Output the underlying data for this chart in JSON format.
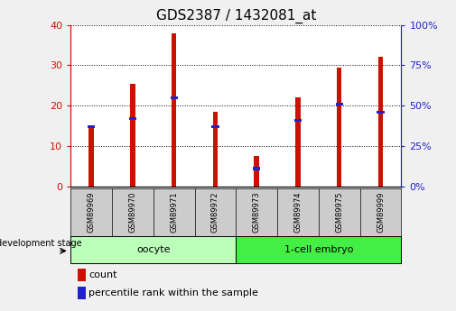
{
  "title": "GDS2387 / 1432081_at",
  "samples": [
    "GSM89969",
    "GSM89970",
    "GSM89971",
    "GSM89972",
    "GSM89973",
    "GSM89974",
    "GSM89975",
    "GSM89999"
  ],
  "count": [
    15,
    25.5,
    38,
    18.5,
    7.5,
    22,
    29.5,
    32
  ],
  "percentile": [
    37,
    42,
    55,
    37,
    11,
    41,
    51,
    46
  ],
  "left_ylim": [
    0,
    40
  ],
  "right_ylim": [
    0,
    100
  ],
  "left_yticks": [
    0,
    10,
    20,
    30,
    40
  ],
  "right_yticks": [
    0,
    25,
    50,
    75,
    100
  ],
  "bar_color_red": "#CC1100",
  "bar_color_blue": "#2222CC",
  "plot_bg": "#FFFFFF",
  "title_fontsize": 11,
  "bar_width": 0.12,
  "legend_labels": [
    "count",
    "percentile rank within the sample"
  ],
  "left_label_color": "#CC1100",
  "right_label_color": "#2222CC",
  "group1_color": "#BBFFBB",
  "group2_color": "#44EE44",
  "gray_label_bg": "#CCCCCC"
}
